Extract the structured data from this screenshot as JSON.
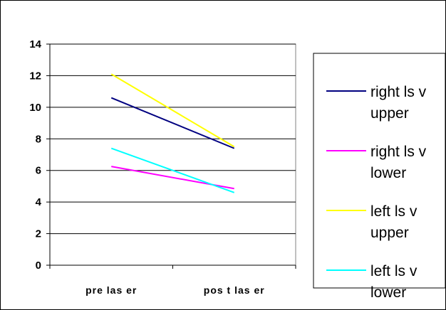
{
  "chart_data": {
    "type": "line",
    "title": "",
    "xlabel": "",
    "ylabel": "",
    "categories": [
      "pre las er",
      "pos t las er"
    ],
    "ylim": [
      0,
      14
    ],
    "yticks": [
      0,
      2,
      4,
      6,
      8,
      10,
      12,
      14
    ],
    "grid": true,
    "legend_position": "right",
    "series": [
      {
        "name": "right ls v upper",
        "legend_lines": [
          "right ls v",
          "upper"
        ],
        "color": "#000080",
        "values": [
          10.6,
          7.4
        ]
      },
      {
        "name": "right ls v lower",
        "legend_lines": [
          "right ls v",
          "lower"
        ],
        "color": "#ff00ff",
        "values": [
          6.25,
          4.85
        ]
      },
      {
        "name": "left ls v upper",
        "legend_lines": [
          "left ls v",
          "upper"
        ],
        "color": "#ffff00",
        "values": [
          12.1,
          7.5
        ]
      },
      {
        "name": "left ls v lower",
        "legend_lines": [
          "left ls v",
          "lower"
        ],
        "color": "#00ffff",
        "values": [
          7.4,
          4.6
        ]
      }
    ]
  },
  "style": {
    "outer_border": "#000000",
    "plot_border": "#808080",
    "gridline": "#000000",
    "axis": "#000000"
  }
}
